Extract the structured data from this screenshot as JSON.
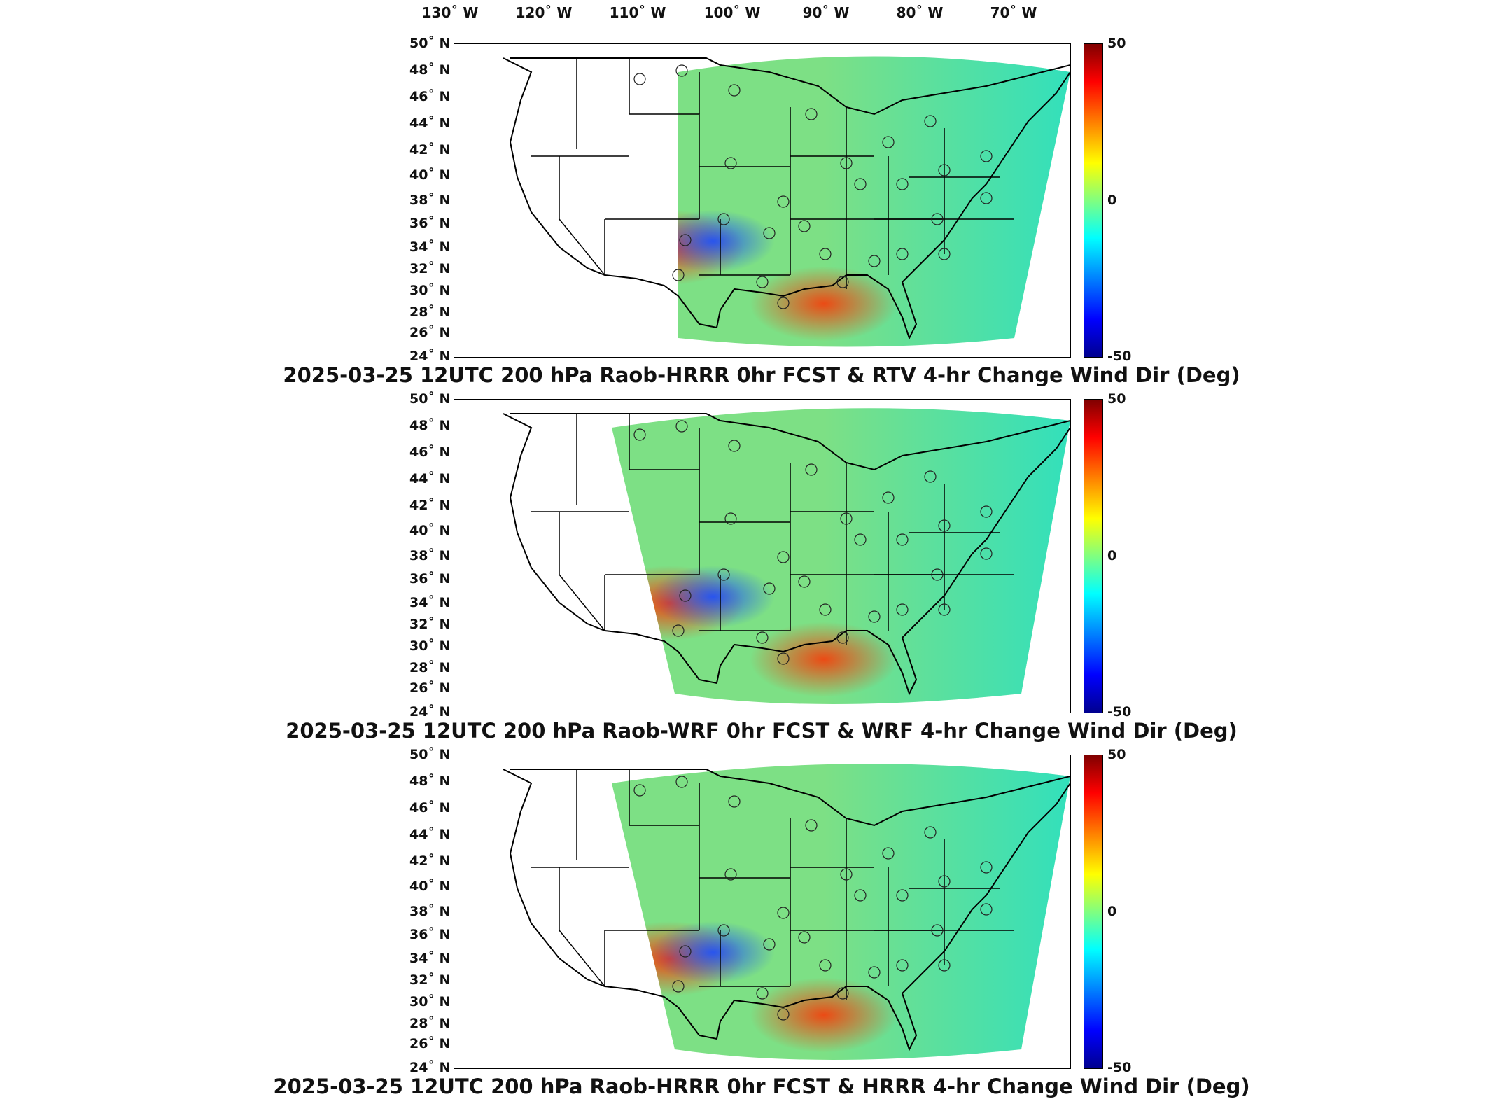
{
  "lon_labels": [
    "130˚ W",
    "120˚ W",
    "110˚ W",
    "100˚ W",
    "90˚ W",
    "80˚ W",
    "70˚ W"
  ],
  "lat_labels": [
    "50˚ N",
    "48˚ N",
    "46˚ N",
    "44˚ N",
    "42˚ N",
    "40˚ N",
    "38˚ N",
    "36˚ N",
    "34˚ N",
    "32˚ N",
    "30˚ N",
    "28˚ N",
    "26˚ N",
    "24˚ N"
  ],
  "colorbar": {
    "max_label": "50",
    "mid_label": "0",
    "min_label": "-50"
  },
  "panels": [
    {
      "title": "2025-03-25 12UTC 200 hPa Raob-HRRR 0hr FCST & RTV 4-hr Change Wind Dir (Deg)"
    },
    {
      "title": "2025-03-25 12UTC 200 hPa Raob-WRF 0hr FCST & WRF 4-hr Change Wind Dir (Deg)"
    },
    {
      "title": "2025-03-25 12UTC 200 hPa Raob-HRRR 0hr FCST & HRRR 4-hr Change Wind Dir (Deg)"
    }
  ],
  "colors": {
    "field_base": "#7de085",
    "warm": "#ff3000",
    "cool": "#1a4cff"
  }
}
